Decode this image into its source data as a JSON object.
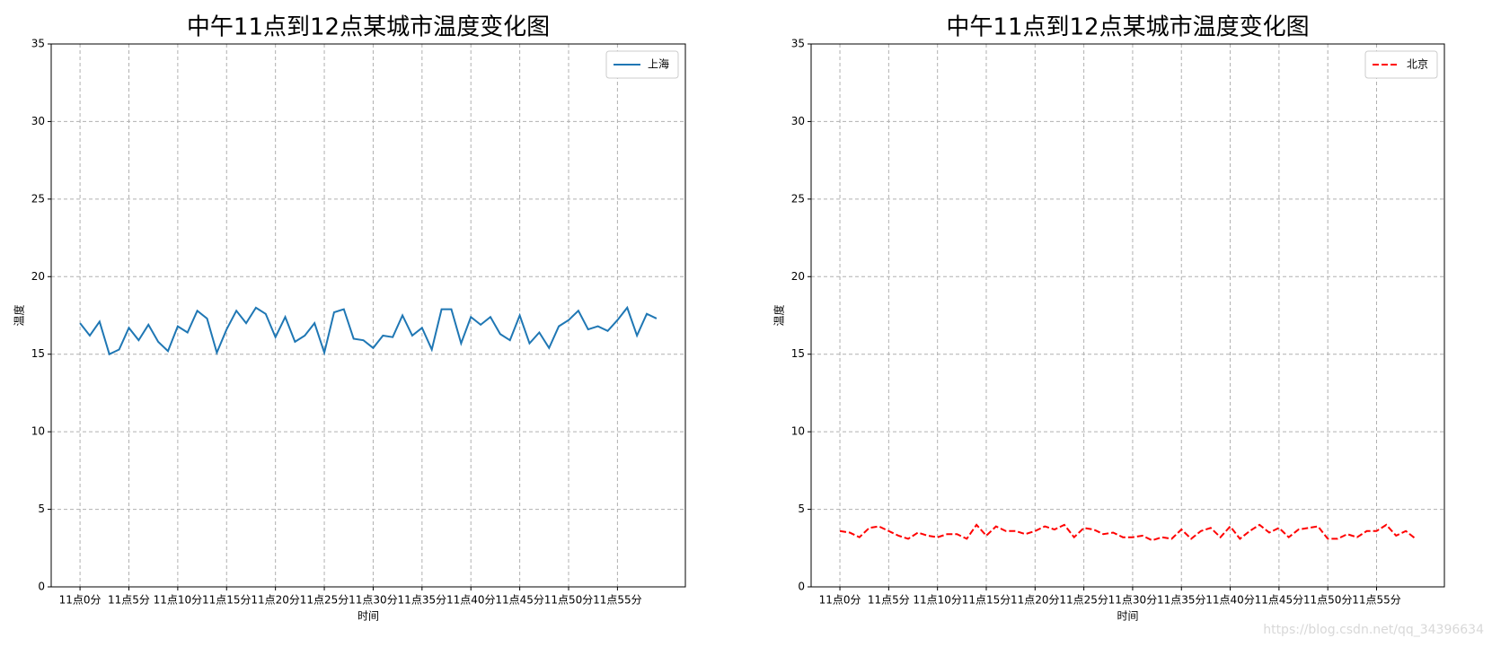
{
  "watermark": "https://blog.csdn.net/qq_34396634",
  "chart_data": [
    {
      "type": "line",
      "title": "中午11点到12点某城市温度变化图",
      "x_label": "时间",
      "y_label": "温度",
      "x": [
        0,
        1,
        2,
        3,
        4,
        5,
        6,
        7,
        8,
        9,
        10,
        11,
        12,
        13,
        14,
        15,
        16,
        17,
        18,
        19,
        20,
        21,
        22,
        23,
        24,
        25,
        26,
        27,
        28,
        29,
        30,
        31,
        32,
        33,
        34,
        35,
        36,
        37,
        38,
        39,
        40,
        41,
        42,
        43,
        44,
        45,
        46,
        47,
        48,
        49,
        50,
        51,
        52,
        53,
        54,
        55,
        56,
        57,
        58,
        59
      ],
      "series": [
        {
          "name": "上海",
          "color": "#1f77b4",
          "linestyle": "solid",
          "values": [
            17.0,
            16.2,
            17.1,
            15.0,
            15.3,
            16.7,
            15.9,
            16.9,
            15.8,
            15.2,
            16.8,
            16.4,
            17.8,
            17.3,
            15.1,
            16.6,
            17.8,
            17.0,
            18.0,
            17.6,
            16.1,
            17.4,
            15.8,
            16.2,
            17.0,
            15.1,
            17.7,
            17.9,
            16.0,
            15.9,
            15.4,
            16.2,
            16.1,
            17.5,
            16.2,
            16.7,
            15.3,
            17.9,
            17.9,
            15.7,
            17.4,
            16.9,
            17.4,
            16.3,
            15.9,
            17.5,
            15.7,
            16.4,
            15.4,
            16.8,
            17.2,
            17.8,
            16.6,
            16.8,
            16.5,
            17.2,
            18.0,
            16.2,
            17.6,
            17.3
          ]
        }
      ],
      "xlim": [
        -2.95,
        61.95
      ],
      "xticks": [
        {
          "value": 0,
          "label": "11点0分"
        },
        {
          "value": 5,
          "label": "11点5分"
        },
        {
          "value": 10,
          "label": "11点10分"
        },
        {
          "value": 15,
          "label": "11点15分"
        },
        {
          "value": 20,
          "label": "11点20分"
        },
        {
          "value": 25,
          "label": "11点25分"
        },
        {
          "value": 30,
          "label": "11点30分"
        },
        {
          "value": 35,
          "label": "11点35分"
        },
        {
          "value": 40,
          "label": "11点40分"
        },
        {
          "value": 45,
          "label": "11点45分"
        },
        {
          "value": 50,
          "label": "11点50分"
        },
        {
          "value": 55,
          "label": "11点55分"
        }
      ],
      "ylim": [
        0,
        35
      ],
      "yticks": [
        0,
        5,
        10,
        15,
        20,
        25,
        30,
        35
      ],
      "grid": true,
      "legend": "upper right"
    },
    {
      "type": "line",
      "title": "中午11点到12点某城市温度变化图",
      "x_label": "时间",
      "y_label": "温度",
      "x": [
        0,
        1,
        2,
        3,
        4,
        5,
        6,
        7,
        8,
        9,
        10,
        11,
        12,
        13,
        14,
        15,
        16,
        17,
        18,
        19,
        20,
        21,
        22,
        23,
        24,
        25,
        26,
        27,
        28,
        29,
        30,
        31,
        32,
        33,
        34,
        35,
        36,
        37,
        38,
        39,
        40,
        41,
        42,
        43,
        44,
        45,
        46,
        47,
        48,
        49,
        50,
        51,
        52,
        53,
        54,
        55,
        56,
        57,
        58,
        59
      ],
      "series": [
        {
          "name": "北京",
          "color": "#ff0000",
          "linestyle": "dashed",
          "values": [
            3.6,
            3.5,
            3.2,
            3.8,
            3.9,
            3.6,
            3.3,
            3.1,
            3.5,
            3.3,
            3.2,
            3.4,
            3.4,
            3.1,
            4.0,
            3.3,
            3.9,
            3.6,
            3.6,
            3.4,
            3.6,
            3.9,
            3.7,
            4.0,
            3.2,
            3.8,
            3.7,
            3.4,
            3.5,
            3.2,
            3.2,
            3.3,
            3.0,
            3.2,
            3.1,
            3.7,
            3.1,
            3.6,
            3.8,
            3.2,
            3.9,
            3.1,
            3.6,
            4.0,
            3.5,
            3.8,
            3.2,
            3.7,
            3.8,
            3.9,
            3.1,
            3.1,
            3.4,
            3.2,
            3.6,
            3.6,
            4.0,
            3.3,
            3.6,
            3.1
          ]
        }
      ],
      "xlim": [
        -2.95,
        61.95
      ],
      "xticks": [
        {
          "value": 0,
          "label": "11点0分"
        },
        {
          "value": 5,
          "label": "11点5分"
        },
        {
          "value": 10,
          "label": "11点10分"
        },
        {
          "value": 15,
          "label": "11点15分"
        },
        {
          "value": 20,
          "label": "11点20分"
        },
        {
          "value": 25,
          "label": "11点25分"
        },
        {
          "value": 30,
          "label": "11点30分"
        },
        {
          "value": 35,
          "label": "11点35分"
        },
        {
          "value": 40,
          "label": "11点40分"
        },
        {
          "value": 45,
          "label": "11点45分"
        },
        {
          "value": 50,
          "label": "11点50分"
        },
        {
          "value": 55,
          "label": "11点55分"
        }
      ],
      "ylim": [
        0,
        35
      ],
      "yticks": [
        0,
        5,
        10,
        15,
        20,
        25,
        30,
        35
      ],
      "grid": true,
      "legend": "upper right"
    }
  ]
}
